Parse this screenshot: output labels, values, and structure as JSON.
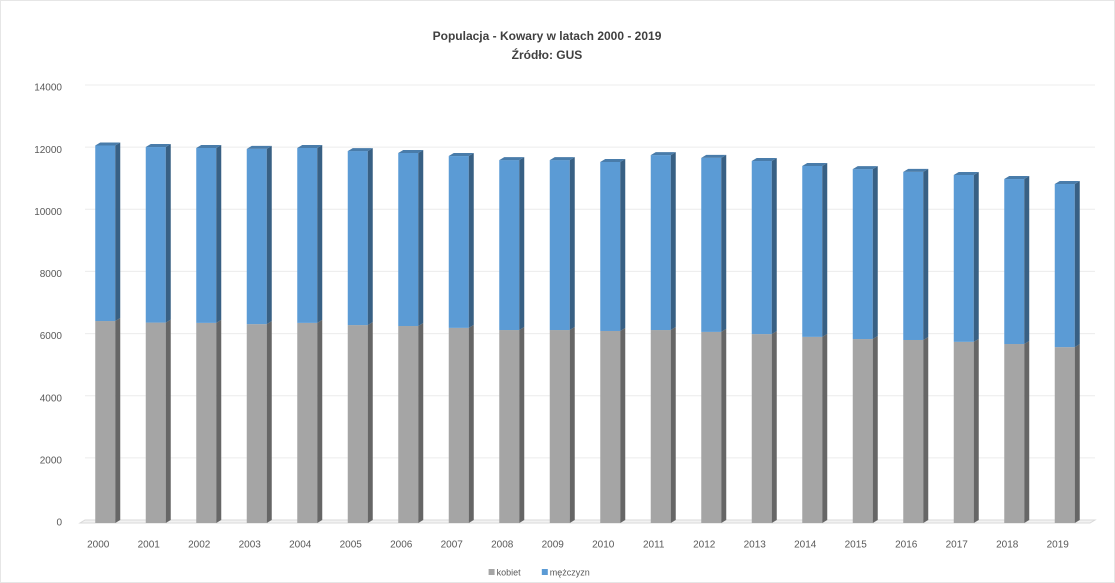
{
  "chart_data": {
    "type": "stacked_bar",
    "title": "Populacja -  Kowary w latach 2000 -  2019",
    "subtitle": "Źródło: GUS",
    "categories": [
      "2000",
      "2001",
      "2002",
      "2003",
      "2004",
      "2005",
      "2006",
      "2007",
      "2008",
      "2009",
      "2010",
      "2011",
      "2012",
      "2013",
      "2014",
      "2015",
      "2016",
      "2017",
      "2018",
      "2019"
    ],
    "series": [
      {
        "name": "kobiet",
        "color": "#a5a5a5",
        "values": [
          6500,
          6450,
          6440,
          6400,
          6440,
          6370,
          6340,
          6280,
          6210,
          6210,
          6180,
          6210,
          6150,
          6080,
          5990,
          5920,
          5890,
          5830,
          5760,
          5660
        ]
      },
      {
        "name": "mężczyzn",
        "color": "#5b9bd5",
        "values": [
          5650,
          5650,
          5630,
          5640,
          5630,
          5600,
          5570,
          5530,
          5470,
          5470,
          5440,
          5630,
          5600,
          5570,
          5500,
          5470,
          5410,
          5370,
          5310,
          5250
        ]
      }
    ],
    "ylim": [
      0,
      14000
    ],
    "yticks": [
      0,
      2000,
      4000,
      6000,
      8000,
      10000,
      12000,
      14000
    ],
    "grid": true,
    "legend": "bottom"
  }
}
